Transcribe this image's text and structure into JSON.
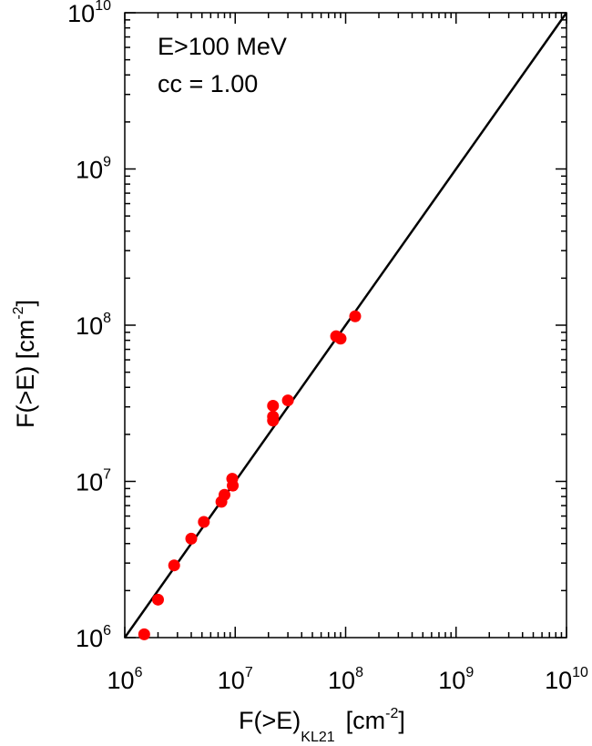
{
  "chart_data": {
    "type": "scatter",
    "x_scale": "log",
    "y_scale": "log",
    "xlim": [
      1000000,
      10000000000
    ],
    "ylim": [
      1000000,
      10000000000
    ],
    "x_ticks": [
      {
        "base": "10",
        "exp": "6",
        "value": 1000000
      },
      {
        "base": "10",
        "exp": "7",
        "value": 10000000
      },
      {
        "base": "10",
        "exp": "8",
        "value": 100000000
      },
      {
        "base": "10",
        "exp": "9",
        "value": 1000000000
      },
      {
        "base": "10",
        "exp": "10",
        "value": 10000000000
      }
    ],
    "y_ticks": [
      {
        "base": "10",
        "exp": "6",
        "value": 1000000
      },
      {
        "base": "10",
        "exp": "7",
        "value": 10000000
      },
      {
        "base": "10",
        "exp": "8",
        "value": 100000000
      },
      {
        "base": "10",
        "exp": "9",
        "value": 1000000000
      },
      {
        "base": "10",
        "exp": "10",
        "value": 10000000000
      }
    ],
    "xlabel": {
      "main": "F(>E)",
      "sub": "KL21",
      "unit_pre": "[cm",
      "unit_exp": "-2",
      "unit_post": "]"
    },
    "ylabel": {
      "main": "F(>E) [cm",
      "unit_exp": "-2",
      "unit_post": "]"
    },
    "annotations": [
      "E>100 MeV",
      "cc = 1.00"
    ],
    "grid": false,
    "line": {
      "label": "",
      "x": [
        1000000,
        10000000000
      ],
      "y": [
        1000000,
        10000000000
      ],
      "color": "#000000"
    },
    "points_color": "#ff0000",
    "points": [
      {
        "x": 1500000,
        "y": 1050000
      },
      {
        "x": 2000000,
        "y": 1750000
      },
      {
        "x": 2800000,
        "y": 2900000
      },
      {
        "x": 4000000,
        "y": 4300000
      },
      {
        "x": 5200000,
        "y": 5500000
      },
      {
        "x": 7500000,
        "y": 7400000
      },
      {
        "x": 8000000,
        "y": 8200000
      },
      {
        "x": 9500000,
        "y": 9400000
      },
      {
        "x": 9400000,
        "y": 10400000
      },
      {
        "x": 22000000,
        "y": 24500000
      },
      {
        "x": 22000000,
        "y": 26000000
      },
      {
        "x": 22000000,
        "y": 30500000
      },
      {
        "x": 30000000,
        "y": 33000000
      },
      {
        "x": 82000000,
        "y": 85000000
      },
      {
        "x": 90000000,
        "y": 82000000
      },
      {
        "x": 122000000,
        "y": 114000000
      }
    ]
  }
}
